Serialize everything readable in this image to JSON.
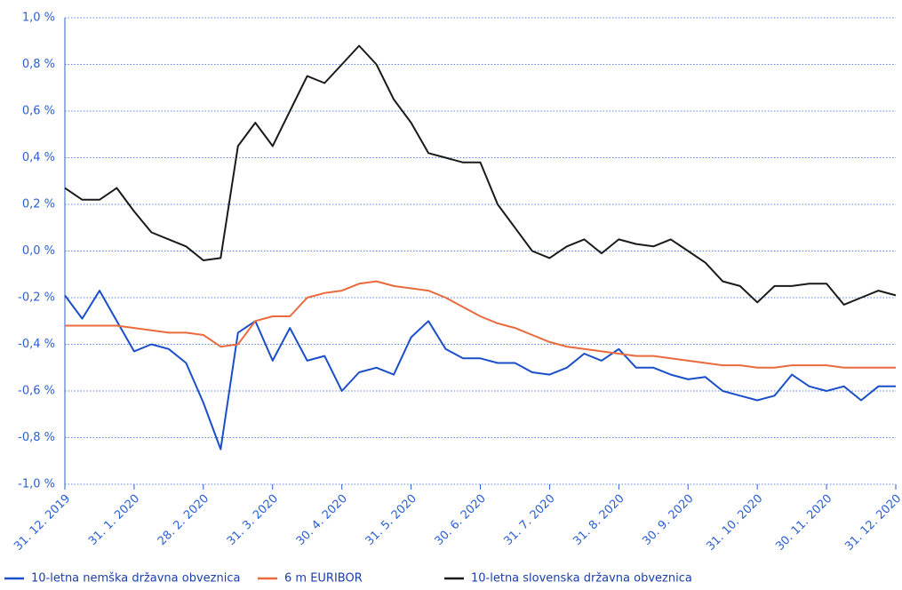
{
  "chart_data": {
    "type": "line",
    "categories": [
      "31. 12. 2019",
      null,
      null,
      null,
      "31. 1. 2020",
      null,
      null,
      null,
      "28. 2. 2020",
      null,
      null,
      null,
      "31. 3. 2020",
      null,
      null,
      null,
      "30. 4. 2020",
      null,
      null,
      null,
      "31. 5. 2020",
      null,
      null,
      null,
      "30. 6. 2020",
      null,
      null,
      null,
      "31. 7. 2020",
      null,
      null,
      null,
      "31. 8. 2020",
      null,
      null,
      null,
      "30. 9. 2020",
      null,
      null,
      null,
      "31. 10. 2020",
      null,
      null,
      null,
      "30. 11. 2020",
      null,
      null,
      null,
      "31. 12. 2020"
    ],
    "series": [
      {
        "name": "10-letna nemška državna obveznica",
        "color": "#1a4fc9",
        "values": [
          -0.19,
          -0.29,
          -0.17,
          -0.3,
          -0.43,
          -0.4,
          -0.42,
          -0.48,
          -0.65,
          -0.85,
          -0.35,
          -0.3,
          -0.47,
          -0.33,
          -0.47,
          -0.45,
          -0.6,
          -0.52,
          -0.5,
          -0.53,
          -0.37,
          -0.3,
          -0.42,
          -0.46,
          -0.46,
          -0.48,
          -0.48,
          -0.52,
          -0.53,
          -0.5,
          -0.44,
          -0.47,
          -0.42,
          -0.5,
          -0.5,
          -0.53,
          -0.55,
          -0.54,
          -0.6,
          -0.62,
          -0.64,
          -0.62,
          -0.53,
          -0.58,
          -0.6,
          -0.58,
          -0.64,
          -0.58,
          -0.58
        ]
      },
      {
        "name": "6 m EURIBOR",
        "color": "#e96a3c",
        "values": [
          -0.32,
          -0.32,
          -0.32,
          -0.32,
          -0.33,
          -0.34,
          -0.35,
          -0.35,
          -0.36,
          -0.41,
          -0.4,
          -0.3,
          -0.28,
          -0.28,
          -0.2,
          -0.18,
          -0.17,
          -0.14,
          -0.13,
          -0.15,
          -0.16,
          -0.17,
          -0.2,
          -0.24,
          -0.28,
          -0.31,
          -0.33,
          -0.36,
          -0.39,
          -0.41,
          -0.42,
          -0.43,
          -0.44,
          -0.45,
          -0.45,
          -0.46,
          -0.47,
          -0.48,
          -0.49,
          -0.49,
          -0.5,
          -0.5,
          -0.49,
          -0.49,
          -0.49,
          -0.5,
          -0.5,
          -0.5,
          -0.5
        ]
      },
      {
        "name": "10-letna slovenska državna obveznica",
        "color": "#1a1a1a",
        "values": [
          0.27,
          0.22,
          0.22,
          0.27,
          0.17,
          0.08,
          0.05,
          0.02,
          -0.04,
          -0.03,
          0.45,
          0.55,
          0.45,
          0.6,
          0.75,
          0.72,
          0.8,
          0.88,
          0.8,
          0.65,
          0.55,
          0.42,
          0.4,
          0.38,
          0.38,
          0.2,
          0.1,
          0.0,
          -0.03,
          0.02,
          0.05,
          -0.01,
          0.05,
          0.03,
          0.02,
          0.05,
          0.0,
          -0.05,
          -0.13,
          -0.15,
          -0.22,
          -0.15,
          -0.15,
          -0.14,
          -0.14,
          -0.23,
          -0.2,
          -0.17,
          -0.19
        ]
      }
    ],
    "ylim": [
      -1,
      1
    ],
    "yticks": [
      {
        "value": -1,
        "label": "-1,0 %"
      },
      {
        "value": -0.8,
        "label": "-0,8 %"
      },
      {
        "value": -0.6,
        "label": "-0,6 %"
      },
      {
        "value": -0.4,
        "label": "-0,4 %"
      },
      {
        "value": -0.2,
        "label": "-0,2 %"
      },
      {
        "value": 0,
        "label": "0,0 %"
      },
      {
        "value": 0.2,
        "label": "0,2 %"
      },
      {
        "value": 0.4,
        "label": "0,4 %"
      },
      {
        "value": 0.6,
        "label": "0,6 %"
      },
      {
        "value": 0.8,
        "label": "0,8 %"
      },
      {
        "value": 1,
        "label": "1,0 %"
      }
    ],
    "grid": true,
    "legend": "bottom"
  }
}
